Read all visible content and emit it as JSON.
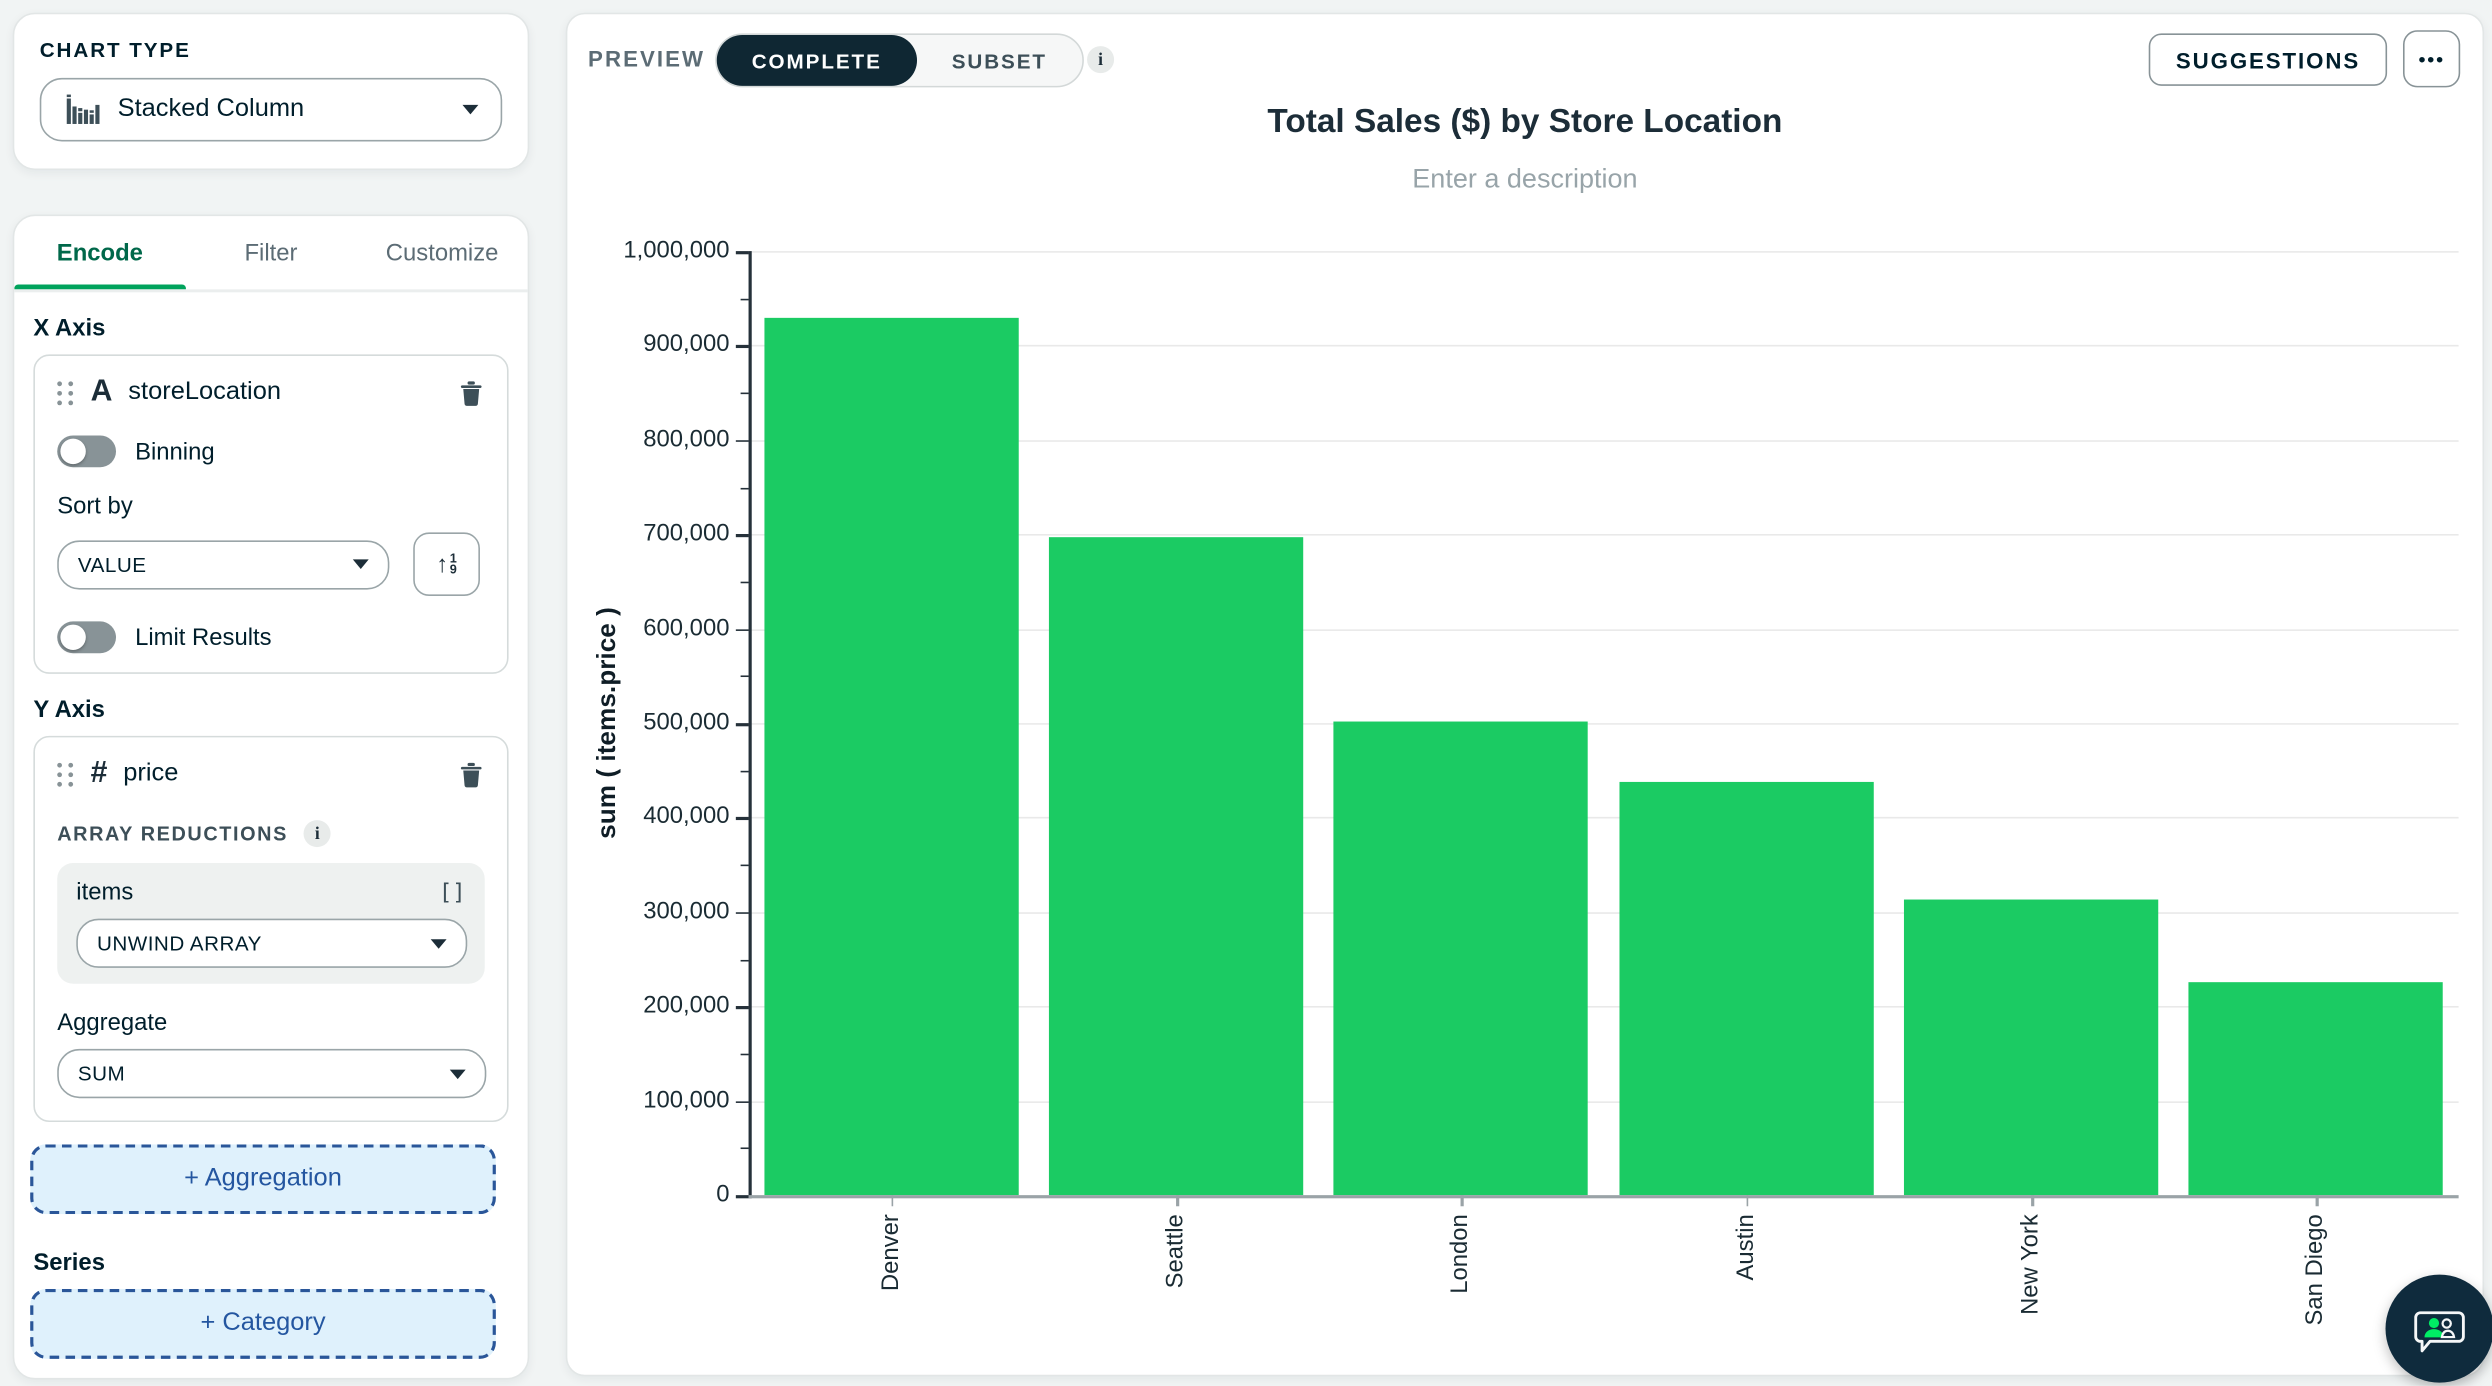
{
  "left_panel": {
    "chart_type": {
      "label": "CHART TYPE",
      "value": "Stacked Column"
    },
    "tabs": [
      {
        "label": "Encode"
      },
      {
        "label": "Filter"
      },
      {
        "label": "Customize"
      }
    ],
    "x_axis": {
      "heading": "X Axis",
      "field": "storeLocation",
      "field_type_glyph": "A",
      "binning_label": "Binning",
      "binning_on": false,
      "sort_by_label": "Sort by",
      "sort_value": "VALUE",
      "sort_order_icon": "1-9-ascending",
      "limit_label": "Limit Results",
      "limit_on": false
    },
    "y_axis": {
      "heading": "Y Axis",
      "field": "price",
      "field_type_glyph": "#",
      "array_reductions_label": "ARRAY REDUCTIONS",
      "array_field": "items",
      "array_brackets": "[]",
      "unwind_value": "UNWIND ARRAY",
      "aggregate_label": "Aggregate",
      "aggregate_value": "SUM"
    },
    "add_aggregation_label": "+ Aggregation",
    "series_heading": "Series",
    "add_category_label": "+ Category"
  },
  "toolbar": {
    "preview_label": "PREVIEW",
    "segments": [
      "COMPLETE",
      "SUBSET"
    ],
    "active_segment": "COMPLETE",
    "suggestions_label": "SUGGESTIONS",
    "more_label": "•••"
  },
  "chart_data": {
    "type": "bar",
    "title": "Total Sales ($) by Store Location",
    "description_placeholder": "Enter a description",
    "categories": [
      "Denver",
      "Seattle",
      "London",
      "Austin",
      "New York",
      "San Diego"
    ],
    "values": [
      930000,
      697000,
      502000,
      438000,
      313000,
      226000
    ],
    "xlabel": "storeLocation",
    "ylabel": "sum ( items.price )",
    "ylim": [
      0,
      1000000
    ],
    "ytick_step": 100000,
    "grid": true,
    "legend": false,
    "bar_color": "#1BCB63"
  },
  "colors": {
    "accent_green": "#00A35C",
    "tab_green": "#00684A",
    "bar_green": "#1BCB63",
    "navy": "#001E2B",
    "dark_pill": "#0F2733",
    "blue_button": "#2456A0",
    "blue_button_bg": "#DFF1FC",
    "muted_gray": "#5C6C75"
  }
}
